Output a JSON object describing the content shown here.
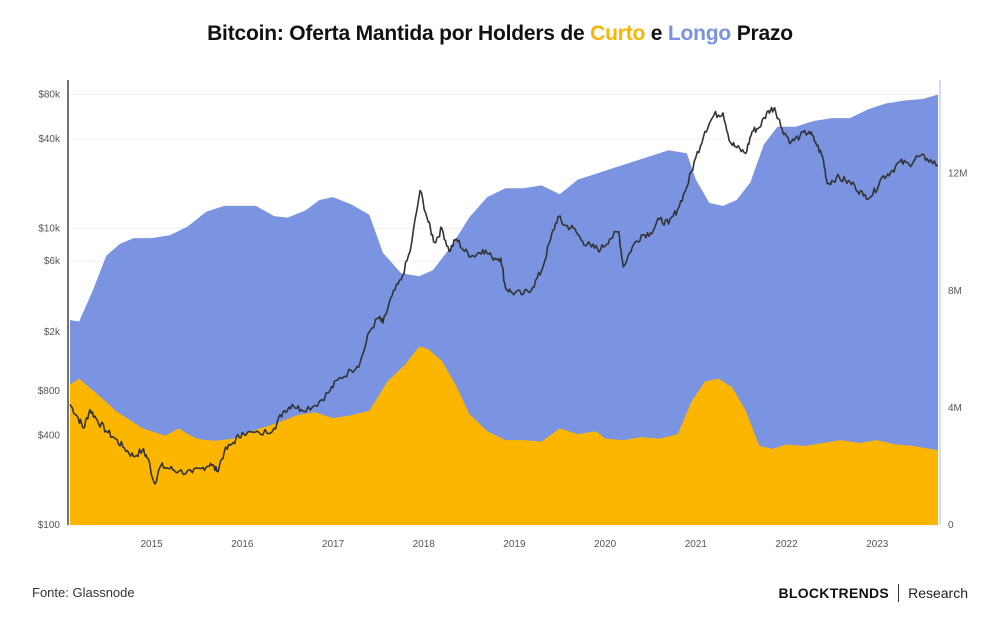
{
  "title": {
    "prefix": "Bitcoin: Oferta Mantida por Holders de ",
    "short_word": "Curto",
    "middle": " e ",
    "long_word": "Longo",
    "suffix": " Prazo"
  },
  "footer": {
    "source": "Fonte: Glassnode",
    "brand": "BLOCKTRENDS",
    "brand_suffix": "Research"
  },
  "colors": {
    "short_term": "#fdb600",
    "long_term": "#7a94e2",
    "price": "#333333",
    "title_short": "#f7b500",
    "title_long": "#7a93e0"
  },
  "chart_data": {
    "type": "area",
    "x_range": [
      2014.1,
      2023.67
    ],
    "x_ticks": [
      "2015",
      "2016",
      "2017",
      "2018",
      "2019",
      "2020",
      "2021",
      "2022",
      "2023"
    ],
    "left_axis": {
      "scale": "log",
      "range": [
        100,
        100000
      ],
      "tick_values": [
        100,
        400,
        800,
        2000,
        6000,
        10000,
        40000,
        80000
      ],
      "tick_labels": [
        "$100",
        "$400",
        "$800",
        "$2k",
        "$6k",
        "$10k",
        "$40k",
        "$80k"
      ]
    },
    "right_axis": {
      "scale": "linear",
      "range": [
        0,
        15200000
      ],
      "tick_values": [
        0,
        4000000,
        8000000,
        12000000
      ],
      "tick_labels": [
        "0",
        "4M",
        "8M",
        "12M"
      ]
    },
    "series": [
      {
        "axis": "right",
        "style": "area",
        "points": [
          [
            2014.1,
            4800000.0
          ],
          [
            2014.2,
            5000000.0
          ],
          [
            2014.35,
            4600000.0
          ],
          [
            2014.5,
            4200000.0
          ],
          [
            2014.6,
            3900000.0
          ],
          [
            2014.75,
            3600000.0
          ],
          [
            2014.9,
            3300000.0
          ],
          [
            2015.0,
            3200000.0
          ],
          [
            2015.15,
            3050000.0
          ],
          [
            2015.3,
            3300000.0
          ],
          [
            2015.4,
            3100000.0
          ],
          [
            2015.5,
            2950000.0
          ],
          [
            2015.6,
            2900000.0
          ],
          [
            2015.7,
            2880000.0
          ],
          [
            2015.9,
            2950000.0
          ],
          [
            2016.0,
            3100000.0
          ],
          [
            2016.2,
            3300000.0
          ],
          [
            2016.4,
            3500000.0
          ],
          [
            2016.6,
            3750000.0
          ],
          [
            2016.8,
            3850000.0
          ],
          [
            2017.0,
            3650000.0
          ],
          [
            2017.2,
            3750000.0
          ],
          [
            2017.4,
            3900000.0
          ],
          [
            2017.5,
            4400000.0
          ],
          [
            2017.6,
            4900000.0
          ],
          [
            2017.8,
            5500000.0
          ],
          [
            2017.95,
            6100000.0
          ],
          [
            2018.05,
            6000000.0
          ],
          [
            2018.2,
            5600000.0
          ],
          [
            2018.35,
            4800000.0
          ],
          [
            2018.5,
            3800000.0
          ],
          [
            2018.7,
            3200000.0
          ],
          [
            2018.9,
            2900000.0
          ],
          [
            2019.1,
            2900000.0
          ],
          [
            2019.3,
            2850000.0
          ],
          [
            2019.5,
            3300000.0
          ],
          [
            2019.7,
            3100000.0
          ],
          [
            2019.9,
            3200000.0
          ],
          [
            2020.0,
            2950000.0
          ],
          [
            2020.2,
            2900000.0
          ],
          [
            2020.4,
            3000000.0
          ],
          [
            2020.6,
            2950000.0
          ],
          [
            2020.8,
            3100000.0
          ],
          [
            2020.95,
            4200000.0
          ],
          [
            2021.1,
            4900000.0
          ],
          [
            2021.25,
            5000000.0
          ],
          [
            2021.4,
            4700000.0
          ],
          [
            2021.55,
            3900000.0
          ],
          [
            2021.7,
            2700000.0
          ],
          [
            2021.85,
            2600000.0
          ],
          [
            2022.0,
            2750000.0
          ],
          [
            2022.2,
            2700000.0
          ],
          [
            2022.4,
            2800000.0
          ],
          [
            2022.6,
            2900000.0
          ],
          [
            2022.8,
            2800000.0
          ],
          [
            2023.0,
            2900000.0
          ],
          [
            2023.2,
            2750000.0
          ],
          [
            2023.4,
            2700000.0
          ],
          [
            2023.67,
            2550000.0
          ]
        ]
      },
      {
        "axis": "right",
        "style": "area",
        "points": [
          [
            2014.1,
            7000000.0
          ],
          [
            2014.2,
            6950000.0
          ],
          [
            2014.35,
            8000000.0
          ],
          [
            2014.5,
            9200000.0
          ],
          [
            2014.65,
            9600000.0
          ],
          [
            2014.8,
            9800000.0
          ],
          [
            2015.0,
            9800000.0
          ],
          [
            2015.2,
            9900000.0
          ],
          [
            2015.4,
            10200000.0
          ],
          [
            2015.6,
            10700000.0
          ],
          [
            2015.8,
            10900000.0
          ],
          [
            2016.0,
            10900000.0
          ],
          [
            2016.15,
            10900000.0
          ],
          [
            2016.35,
            10550000.0
          ],
          [
            2016.5,
            10500000.0
          ],
          [
            2016.7,
            10750000.0
          ],
          [
            2016.85,
            11100000.0
          ],
          [
            2017.0,
            11200000.0
          ],
          [
            2017.2,
            10950000.0
          ],
          [
            2017.4,
            10600000.0
          ],
          [
            2017.55,
            9300000.0
          ],
          [
            2017.75,
            8600000.0
          ],
          [
            2017.95,
            8500000.0
          ],
          [
            2018.1,
            8700000.0
          ],
          [
            2018.3,
            9500000.0
          ],
          [
            2018.5,
            10500000.0
          ],
          [
            2018.7,
            11200000.0
          ],
          [
            2018.9,
            11500000.0
          ],
          [
            2019.1,
            11500000.0
          ],
          [
            2019.3,
            11600000.0
          ],
          [
            2019.5,
            11300000.0
          ],
          [
            2019.7,
            11800000.0
          ],
          [
            2019.9,
            12000000.0
          ],
          [
            2020.1,
            12200000.0
          ],
          [
            2020.3,
            12400000.0
          ],
          [
            2020.5,
            12600000.0
          ],
          [
            2020.7,
            12800000.0
          ],
          [
            2020.9,
            12700000.0
          ],
          [
            2021.0,
            11800000.0
          ],
          [
            2021.15,
            11000000.0
          ],
          [
            2021.3,
            10900000.0
          ],
          [
            2021.45,
            11100000.0
          ],
          [
            2021.6,
            11700000.0
          ],
          [
            2021.75,
            13000000.0
          ],
          [
            2021.9,
            13600000.0
          ],
          [
            2022.1,
            13600000.0
          ],
          [
            2022.3,
            13800000.0
          ],
          [
            2022.5,
            13900000.0
          ],
          [
            2022.7,
            13900000.0
          ],
          [
            2022.9,
            14200000.0
          ],
          [
            2023.1,
            14400000.0
          ],
          [
            2023.3,
            14500000.0
          ],
          [
            2023.5,
            14550000.0
          ],
          [
            2023.67,
            14700000.0
          ]
        ]
      },
      {
        "axis": "left",
        "style": "line",
        "points": [
          [
            2014.1,
            650
          ],
          [
            2014.18,
            540
          ],
          [
            2014.25,
            450
          ],
          [
            2014.32,
            600
          ],
          [
            2014.4,
            510
          ],
          [
            2014.5,
            430
          ],
          [
            2014.6,
            380
          ],
          [
            2014.7,
            330
          ],
          [
            2014.8,
            290
          ],
          [
            2014.9,
            320
          ],
          [
            2014.96,
            280
          ],
          [
            2015.03,
            190
          ],
          [
            2015.1,
            250
          ],
          [
            2015.2,
            240
          ],
          [
            2015.3,
            230
          ],
          [
            2015.45,
            225
          ],
          [
            2015.55,
            240
          ],
          [
            2015.65,
            260
          ],
          [
            2015.72,
            230
          ],
          [
            2015.8,
            310
          ],
          [
            2015.9,
            360
          ],
          [
            2016.0,
            420
          ],
          [
            2016.2,
            410
          ],
          [
            2016.35,
            450
          ],
          [
            2016.45,
            580
          ],
          [
            2016.55,
            650
          ],
          [
            2016.65,
            600
          ],
          [
            2016.8,
            640
          ],
          [
            2016.95,
            780
          ],
          [
            2017.05,
            950
          ],
          [
            2017.2,
            1100
          ],
          [
            2017.3,
            1250
          ],
          [
            2017.4,
            2000
          ],
          [
            2017.5,
            2500
          ],
          [
            2017.55,
            2300
          ],
          [
            2017.65,
            3500
          ],
          [
            2017.75,
            4500
          ],
          [
            2017.85,
            7000
          ],
          [
            2017.96,
            18000
          ],
          [
            2018.05,
            11000
          ],
          [
            2018.12,
            8000
          ],
          [
            2018.2,
            10000
          ],
          [
            2018.28,
            7000
          ],
          [
            2018.36,
            8500
          ],
          [
            2018.45,
            7000
          ],
          [
            2018.55,
            6500
          ],
          [
            2018.65,
            7200
          ],
          [
            2018.75,
            6400
          ],
          [
            2018.85,
            6300
          ],
          [
            2018.9,
            4000
          ],
          [
            2018.97,
            3700
          ],
          [
            2019.1,
            3600
          ],
          [
            2019.2,
            4000
          ],
          [
            2019.3,
            5200
          ],
          [
            2019.4,
            8500
          ],
          [
            2019.48,
            12000
          ],
          [
            2019.55,
            10500
          ],
          [
            2019.65,
            10000
          ],
          [
            2019.75,
            8200
          ],
          [
            2019.85,
            7500
          ],
          [
            2019.95,
            7200
          ],
          [
            2020.05,
            8500
          ],
          [
            2020.15,
            9500
          ],
          [
            2020.2,
            5500
          ],
          [
            2020.3,
            7500
          ],
          [
            2020.4,
            9000
          ],
          [
            2020.5,
            9300
          ],
          [
            2020.6,
            11500
          ],
          [
            2020.7,
            10700
          ],
          [
            2020.8,
            13500
          ],
          [
            2020.9,
            19000
          ],
          [
            2021.0,
            30000
          ],
          [
            2021.1,
            45000
          ],
          [
            2021.2,
            58000
          ],
          [
            2021.3,
            60000
          ],
          [
            2021.38,
            38000
          ],
          [
            2021.45,
            35000
          ],
          [
            2021.55,
            32000
          ],
          [
            2021.62,
            45000
          ],
          [
            2021.7,
            48000
          ],
          [
            2021.8,
            62000
          ],
          [
            2021.87,
            65000
          ],
          [
            2021.95,
            47000
          ],
          [
            2022.05,
            38000
          ],
          [
            2022.15,
            42000
          ],
          [
            2022.25,
            45000
          ],
          [
            2022.32,
            38000
          ],
          [
            2022.4,
            30000
          ],
          [
            2022.45,
            20000
          ],
          [
            2022.55,
            22000
          ],
          [
            2022.65,
            21000
          ],
          [
            2022.75,
            19500
          ],
          [
            2022.85,
            16500
          ],
          [
            2022.95,
            16800
          ],
          [
            2023.05,
            22000
          ],
          [
            2023.15,
            24000
          ],
          [
            2023.25,
            28000
          ],
          [
            2023.35,
            27000
          ],
          [
            2023.45,
            30500
          ],
          [
            2023.55,
            29500
          ],
          [
            2023.67,
            26500
          ]
        ]
      }
    ]
  }
}
